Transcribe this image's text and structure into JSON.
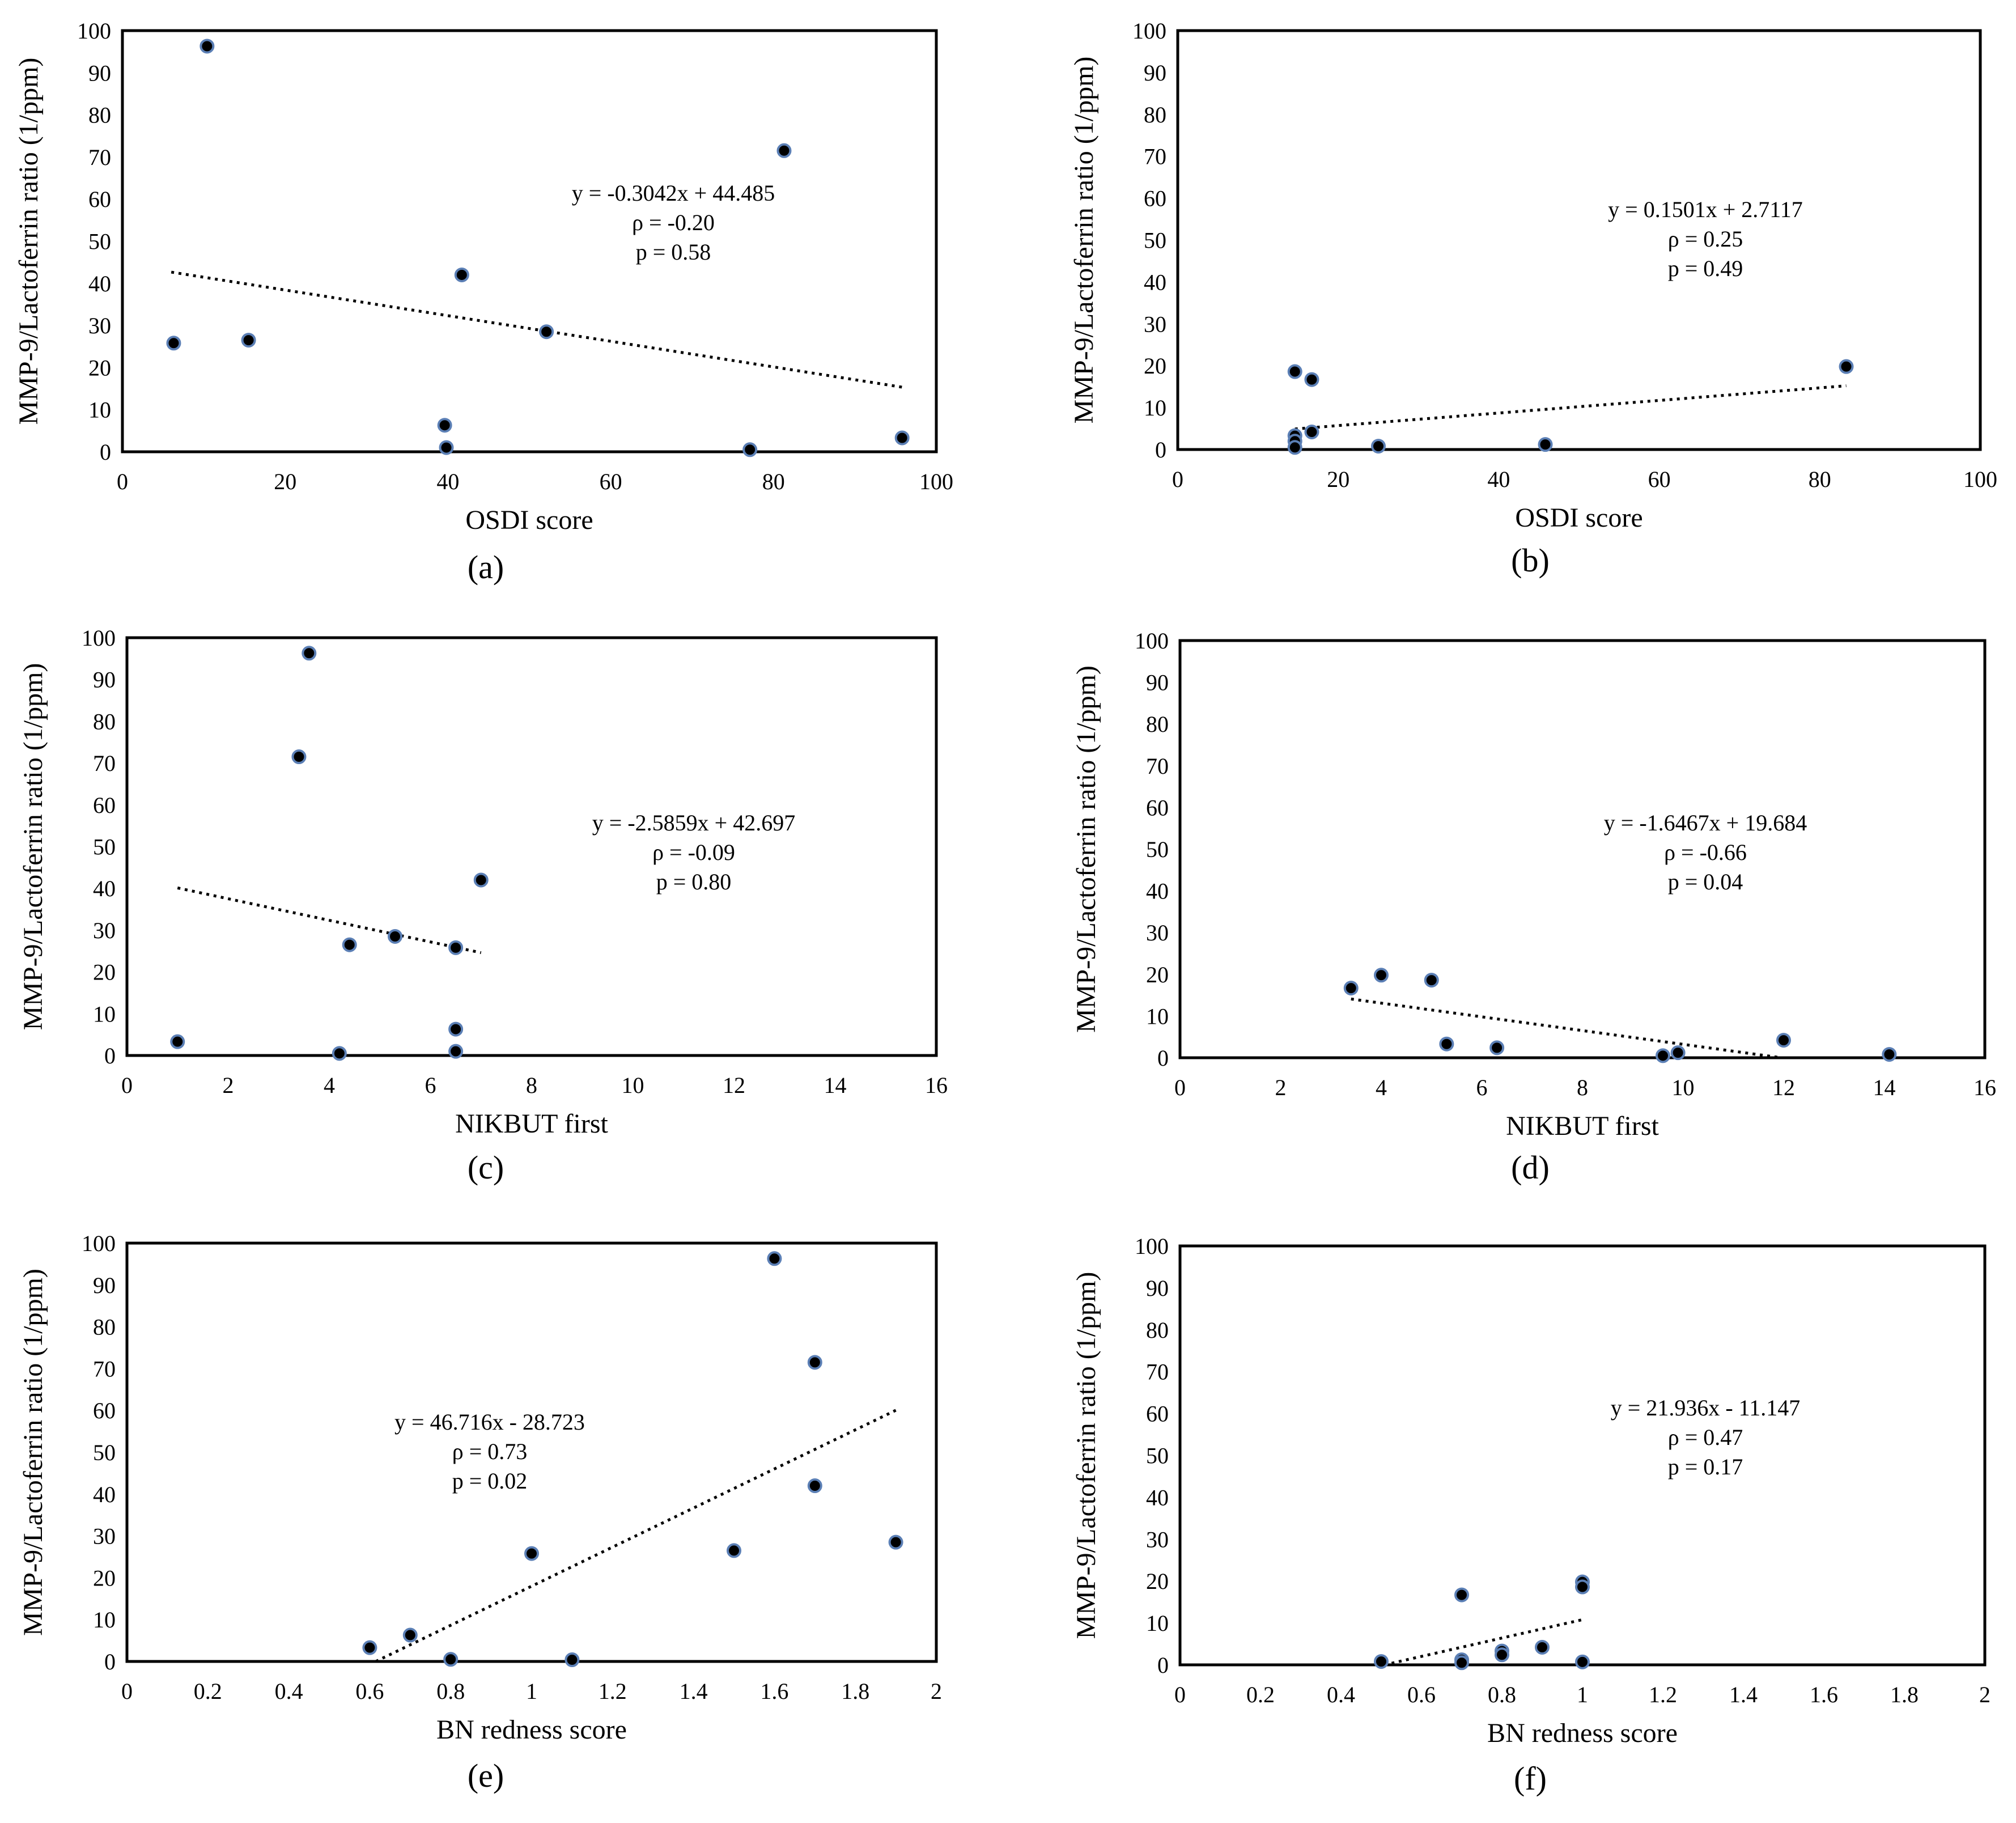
{
  "figure": {
    "ylabel": "MMP-9/Lactoferrin ratio (1/ppm)"
  },
  "colors": {
    "marker_fill": "#000000",
    "marker_edge": "#5b7fb5",
    "frame": "#000000",
    "trendline": "#000000",
    "background": "#ffffff"
  },
  "chart_data": [
    {
      "type": "scatter",
      "panel": "a",
      "panel_label": "(a)",
      "xlabel": "OSDI score",
      "ylabel": "MMP-9/Lactoferrin ratio (1/ppm)",
      "xlim": [
        0,
        100
      ],
      "ylim": [
        0,
        100
      ],
      "xticks": [
        0,
        20,
        40,
        60,
        80,
        100
      ],
      "yticks": [
        0,
        10,
        20,
        30,
        40,
        50,
        60,
        70,
        80,
        90,
        100
      ],
      "x": [
        6.3,
        10.4,
        15.5,
        39.6,
        39.8,
        41.7,
        52.1,
        77.1,
        81.3,
        95.8
      ],
      "y": [
        25.8,
        96.3,
        26.5,
        6.3,
        1.0,
        42.0,
        28.5,
        0.5,
        71.5,
        3.3
      ],
      "trendline": {
        "x_range": [
          6,
          96
        ],
        "slope": -0.3042,
        "intercept": 44.485
      },
      "annotation": [
        "y = -0.3042x + 44.485",
        "ρ = -0.20",
        "p = 0.58"
      ]
    },
    {
      "type": "scatter",
      "panel": "b",
      "panel_label": "(b)",
      "xlabel": "OSDI score",
      "ylabel": "MMP-9/Lactoferrin ratio (1/ppm)",
      "xlim": [
        0,
        100
      ],
      "ylim": [
        0,
        100
      ],
      "xticks": [
        0,
        20,
        40,
        60,
        80,
        100
      ],
      "yticks": [
        0,
        10,
        20,
        30,
        40,
        50,
        60,
        70,
        80,
        90,
        100
      ],
      "x": [
        14.6,
        14.6,
        14.6,
        14.6,
        16.7,
        16.7,
        25.0,
        45.8,
        83.3
      ],
      "y": [
        18.6,
        3.3,
        2.0,
        0.5,
        16.7,
        4.2,
        0.8,
        1.2,
        19.8
      ],
      "trendline": {
        "x_range": [
          14.6,
          83.3
        ],
        "slope": 0.1501,
        "intercept": 2.7117
      },
      "annotation": [
        "y = 0.1501x + 2.7117",
        "ρ = 0.25",
        "p = 0.49"
      ]
    },
    {
      "type": "scatter",
      "panel": "c",
      "panel_label": "(c)",
      "xlabel": "NIKBUT  first",
      "ylabel": "MMP-9/Lactoferrin ratio (1/ppm)",
      "xlim": [
        0,
        16
      ],
      "ylim": [
        0,
        100
      ],
      "xticks": [
        0,
        2,
        4,
        6,
        8,
        10,
        12,
        14,
        16
      ],
      "yticks": [
        0,
        10,
        20,
        30,
        40,
        50,
        60,
        70,
        80,
        90,
        100
      ],
      "x": [
        1.0,
        3.4,
        3.6,
        4.2,
        4.4,
        5.3,
        6.5,
        6.5,
        6.5,
        7.0
      ],
      "y": [
        3.3,
        71.5,
        96.3,
        0.5,
        26.5,
        28.5,
        25.8,
        6.3,
        1.0,
        42.0
      ],
      "trendline": {
        "x_range": [
          1.0,
          7.0
        ],
        "slope": -2.5859,
        "intercept": 42.697
      },
      "annotation": [
        "y = -2.5859x + 42.697",
        "ρ = -0.09",
        "p  = 0.80"
      ]
    },
    {
      "type": "scatter",
      "panel": "d",
      "panel_label": "(d)",
      "xlabel": "NIKBUT  first",
      "ylabel": "MMP-9/Lactoferrin ratio (1/ppm)",
      "xlim": [
        0,
        16
      ],
      "ylim": [
        0,
        100
      ],
      "xticks": [
        0,
        2,
        4,
        6,
        8,
        10,
        12,
        14,
        16
      ],
      "yticks": [
        0,
        10,
        20,
        30,
        40,
        50,
        60,
        70,
        80,
        90,
        100
      ],
      "x": [
        3.4,
        4.0,
        5.0,
        5.3,
        6.3,
        9.6,
        9.9,
        12.0,
        14.1
      ],
      "y": [
        16.7,
        19.8,
        18.6,
        3.3,
        2.4,
        0.5,
        1.2,
        4.2,
        0.8
      ],
      "trendline": {
        "x_range": [
          3.4,
          11.95
        ],
        "slope": -1.6467,
        "intercept": 19.684
      },
      "annotation": [
        "y = -1.6467x + 19.684",
        "ρ = -0.66",
        "p = 0.04"
      ]
    },
    {
      "type": "scatter",
      "panel": "e",
      "panel_label": "(e)",
      "xlabel": "BN redness score",
      "ylabel": "MMP-9/Lactoferrin ratio (1/ppm)",
      "xlim": [
        0,
        2
      ],
      "ylim": [
        0,
        100
      ],
      "xticks": [
        0,
        0.2,
        0.4,
        0.6,
        0.8,
        1,
        1.2,
        1.4,
        1.6,
        1.8,
        2
      ],
      "yticks": [
        0,
        10,
        20,
        30,
        40,
        50,
        60,
        70,
        80,
        90,
        100
      ],
      "x": [
        0.6,
        0.7,
        0.8,
        1.0,
        1.1,
        1.5,
        1.6,
        1.7,
        1.7,
        1.9
      ],
      "y": [
        3.3,
        6.3,
        0.5,
        25.8,
        0.4,
        26.5,
        96.3,
        71.5,
        42.0,
        28.5
      ],
      "trendline": {
        "x_range": [
          0.615,
          1.9
        ],
        "slope": 46.716,
        "intercept": -28.723
      },
      "annotation": [
        "y = 46.716x - 28.723",
        "ρ = 0.73",
        "p = 0.02"
      ]
    },
    {
      "type": "scatter",
      "panel": "f",
      "panel_label": "(f)",
      "xlabel": "BN redness score",
      "ylabel": "MMP-9/Lactoferrin ratio (1/ppm)",
      "xlim": [
        0,
        2
      ],
      "ylim": [
        0,
        100
      ],
      "xticks": [
        0,
        0.2,
        0.4,
        0.6,
        0.8,
        1,
        1.2,
        1.4,
        1.6,
        1.8,
        2
      ],
      "yticks": [
        0,
        10,
        20,
        30,
        40,
        50,
        60,
        70,
        80,
        90,
        100
      ],
      "x": [
        0.5,
        0.7,
        0.7,
        0.7,
        0.8,
        0.8,
        0.9,
        1.0,
        1.0,
        1.0
      ],
      "y": [
        0.8,
        16.7,
        1.2,
        0.5,
        3.3,
        2.4,
        4.2,
        19.8,
        18.6,
        0.7
      ],
      "trendline": {
        "x_range": [
          0.508,
          1.0
        ],
        "slope": 21.936,
        "intercept": -11.147
      },
      "annotation": [
        "y = 21.936x - 11.147",
        "ρ = 0.47",
        "p = 0.17"
      ]
    }
  ]
}
